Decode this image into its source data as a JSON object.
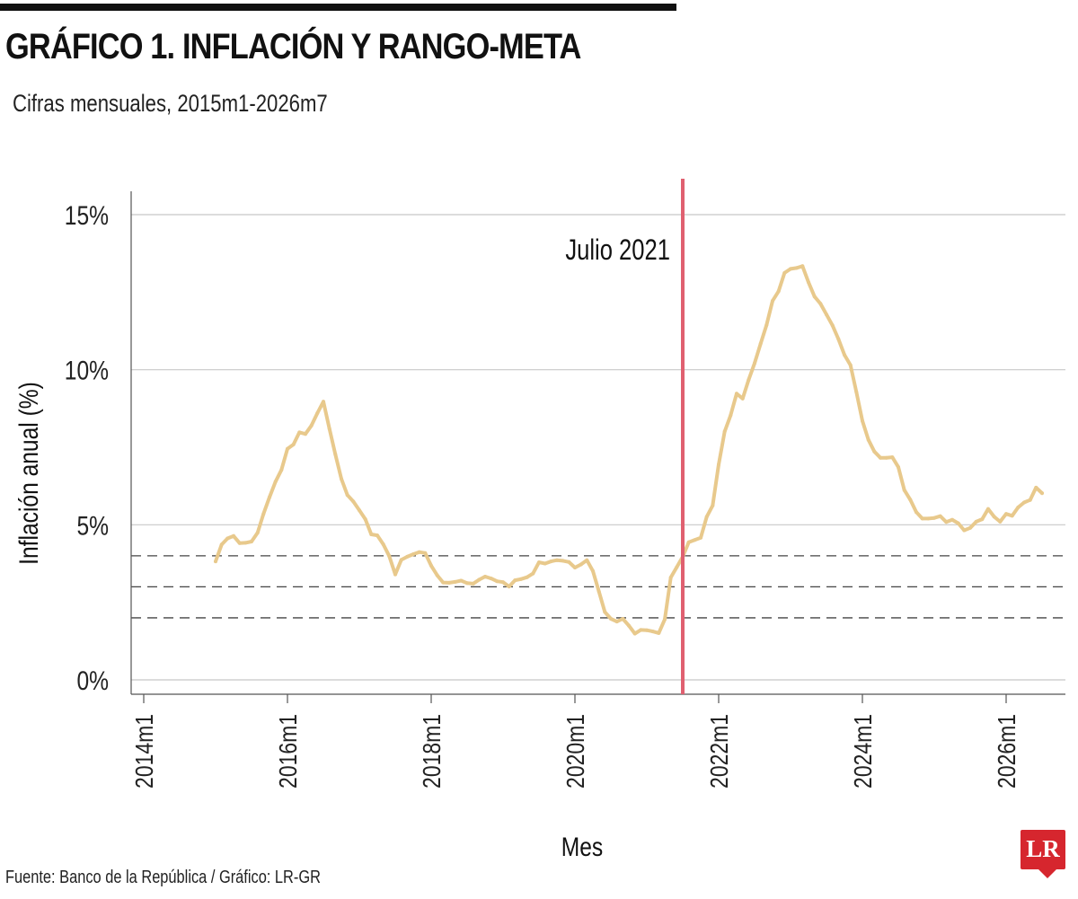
{
  "header": {
    "title": "GRÁFICO 1. INFLACIÓN Y RANGO-META",
    "subtitle": "Cifras mensuales, 2015m1-2026m7"
  },
  "footer": {
    "source": "Fuente: Banco de la República / Gráfico: LR-GR",
    "logo_text": "LR"
  },
  "colors": {
    "series": "#e8c98c",
    "marker_line": "#e06070",
    "grid": "#c8c8c8",
    "target_lines": "#444444",
    "logo": "#d6262e"
  },
  "chart_data": {
    "type": "line",
    "title": "",
    "xlabel": "Mes",
    "ylabel": "Inflación anual (%)",
    "ylim": [
      0,
      15
    ],
    "y_ticks": [
      0,
      5,
      10,
      15
    ],
    "y_tick_labels": [
      "0%",
      "5%",
      "10%",
      "15%"
    ],
    "xlim": [
      "2014m1",
      "2026m7"
    ],
    "x_ticks": [
      "2014m1",
      "2016m1",
      "2018m1",
      "2020m1",
      "2022m1",
      "2024m1",
      "2026m1"
    ],
    "grid": true,
    "reference_lines": [
      {
        "y": 2,
        "style": "dashed"
      },
      {
        "y": 3,
        "style": "dashed"
      },
      {
        "y": 4,
        "style": "dashed"
      }
    ],
    "vertical_marker": {
      "x": "2021m7",
      "label": "Julio 2021"
    },
    "series": [
      {
        "x": [
          "2015m1",
          "2015m2",
          "2015m3",
          "2015m4",
          "2015m5",
          "2015m6",
          "2015m7",
          "2015m8",
          "2015m9",
          "2015m10",
          "2015m11",
          "2015m12",
          "2016m1",
          "2016m2",
          "2016m3",
          "2016m4",
          "2016m5",
          "2016m6",
          "2016m7",
          "2016m8",
          "2016m9",
          "2016m10",
          "2016m11",
          "2016m12",
          "2017m1",
          "2017m2",
          "2017m3",
          "2017m4",
          "2017m5",
          "2017m6",
          "2017m7",
          "2017m8",
          "2017m9",
          "2017m10",
          "2017m11",
          "2017m12",
          "2018m1",
          "2018m2",
          "2018m3",
          "2018m4",
          "2018m5",
          "2018m6",
          "2018m7",
          "2018m8",
          "2018m9",
          "2018m10",
          "2018m11",
          "2018m12",
          "2019m1",
          "2019m2",
          "2019m3",
          "2019m4",
          "2019m5",
          "2019m6",
          "2019m7",
          "2019m8",
          "2019m9",
          "2019m10",
          "2019m11",
          "2019m12",
          "2020m1",
          "2020m2",
          "2020m3",
          "2020m4",
          "2020m5",
          "2020m6",
          "2020m7",
          "2020m8",
          "2020m9",
          "2020m10",
          "2020m11",
          "2020m12",
          "2021m1",
          "2021m2",
          "2021m3",
          "2021m4",
          "2021m5",
          "2021m6",
          "2021m7",
          "2021m8",
          "2021m9",
          "2021m10",
          "2021m11",
          "2021m12",
          "2022m1",
          "2022m2",
          "2022m3",
          "2022m4",
          "2022m5",
          "2022m6",
          "2022m7",
          "2022m8",
          "2022m9",
          "2022m10",
          "2022m11",
          "2022m12",
          "2023m1",
          "2023m2",
          "2023m3",
          "2023m4",
          "2023m5",
          "2023m6",
          "2023m7",
          "2023m8",
          "2023m9",
          "2023m10",
          "2023m11",
          "2023m12",
          "2024m1",
          "2024m2",
          "2024m3",
          "2024m4",
          "2024m5",
          "2024m6",
          "2024m7",
          "2024m8",
          "2024m9",
          "2024m10",
          "2024m11",
          "2024m12",
          "2025m1",
          "2025m2",
          "2025m3",
          "2025m4",
          "2025m5",
          "2025m6",
          "2025m7",
          "2025m8",
          "2025m9",
          "2025m10",
          "2025m11",
          "2025m12",
          "2026m1",
          "2026m2",
          "2026m3",
          "2026m4",
          "2026m5",
          "2026m6",
          "2026m7"
        ],
        "values": [
          3.82,
          4.36,
          4.56,
          4.64,
          4.41,
          4.42,
          4.46,
          4.74,
          5.35,
          5.89,
          6.39,
          6.77,
          7.45,
          7.59,
          7.98,
          7.93,
          8.2,
          8.6,
          8.97,
          8.1,
          7.27,
          6.48,
          5.96,
          5.75,
          5.47,
          5.18,
          4.69,
          4.66,
          4.37,
          3.99,
          3.4,
          3.87,
          3.97,
          4.05,
          4.12,
          4.09,
          3.68,
          3.37,
          3.14,
          3.13,
          3.16,
          3.2,
          3.12,
          3.1,
          3.23,
          3.33,
          3.27,
          3.18,
          3.15,
          3.01,
          3.21,
          3.25,
          3.31,
          3.43,
          3.79,
          3.75,
          3.82,
          3.86,
          3.84,
          3.8,
          3.62,
          3.72,
          3.86,
          3.51,
          2.85,
          2.19,
          1.97,
          1.88,
          1.97,
          1.75,
          1.49,
          1.61,
          1.6,
          1.56,
          1.51,
          1.95,
          3.3,
          3.63,
          3.97,
          4.44,
          4.51,
          4.58,
          5.26,
          5.62,
          6.94,
          8.01,
          8.53,
          9.23,
          9.07,
          9.67,
          10.21,
          10.84,
          11.44,
          12.22,
          12.53,
          13.12,
          13.25,
          13.28,
          13.34,
          12.82,
          12.36,
          12.13,
          11.78,
          11.43,
          10.99,
          10.48,
          10.15,
          9.28,
          8.35,
          7.74,
          7.36,
          7.16,
          7.16,
          7.18,
          6.86,
          6.12,
          5.81,
          5.41,
          5.2,
          5.2,
          5.22,
          5.28,
          5.09,
          5.16,
          5.05,
          4.82,
          4.9,
          5.1,
          5.18,
          5.51,
          5.26,
          5.1,
          5.35,
          5.29,
          5.56,
          5.72,
          5.8,
          6.2,
          6.02
        ]
      }
    ]
  }
}
